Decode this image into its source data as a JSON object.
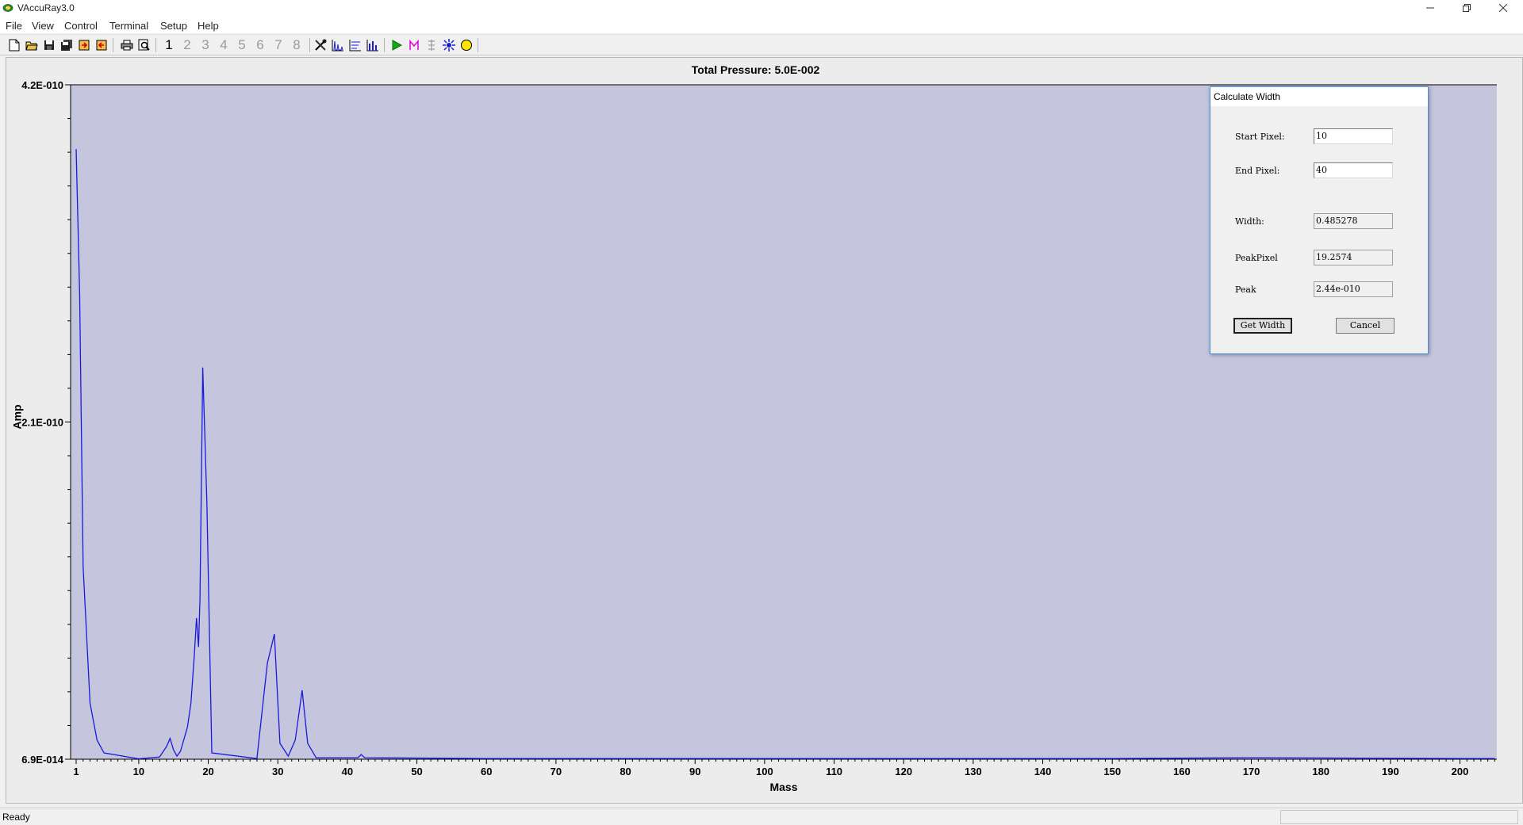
{
  "window": {
    "title": "VAccuRay3.0"
  },
  "menu": [
    "File",
    "View",
    "Control",
    "Terminal",
    "Setup",
    "Help"
  ],
  "toolbar": {
    "channels": [
      "1",
      "2",
      "3",
      "4",
      "5",
      "6",
      "7",
      "8"
    ],
    "active_channel": "1"
  },
  "colors": {
    "plot_bg": "#c5c5de",
    "trace": "#1a1adb",
    "dialog_border": "#4a90d9"
  },
  "chart_data": {
    "type": "line",
    "title": "Total Pressure: 5.0E-002",
    "xlabel": "Mass",
    "ylabel": "Amp",
    "xlim": [
      0.2,
      205.3
    ],
    "ylim": [
      6.9e-14,
      4.2e-10
    ],
    "x_ticks": [
      1,
      10,
      20,
      30,
      40,
      50,
      60,
      70,
      80,
      90,
      100,
      110,
      120,
      130,
      140,
      150,
      160,
      170,
      180,
      190,
      200
    ],
    "y_tick_labels": [
      "4.2E-010",
      "2.1E-010",
      "6.9E-014"
    ],
    "y_tick_values": [
      4.2e-10,
      2.1e-10,
      6.9e-14
    ],
    "grid": false,
    "legend": "none",
    "series": [
      {
        "x": [
          1.0,
          1.5,
          2.0,
          3.0,
          4.0,
          5.0,
          10.0,
          13.0,
          14.0,
          14.5,
          15.0,
          15.5,
          16.0,
          17.0,
          17.5,
          18.0,
          18.3,
          18.6,
          18.8,
          19.2,
          19.8,
          20.5,
          27.0,
          28.5,
          29.5,
          30.3,
          31.5,
          32.5,
          33.5,
          34.3,
          35.5,
          41.5,
          42.0,
          42.5,
          60.0,
          100.0,
          150.0,
          171.0,
          200.0,
          205.0
        ],
        "y": [
          3.8e-10,
          2.9e-10,
          1.2e-10,
          3.5e-11,
          1.2e-11,
          4e-12,
          3e-13,
          1.5e-12,
          8e-12,
          1.3e-11,
          6e-12,
          2e-12,
          5e-12,
          2e-11,
          3.5e-11,
          6.5e-11,
          8.8e-11,
          7e-11,
          1e-10,
          2.44e-10,
          1.6e-10,
          4e-12,
          5e-13,
          6e-11,
          7.8e-11,
          1e-11,
          2e-12,
          1.2e-11,
          4.3e-11,
          1e-11,
          1e-12,
          1e-12,
          3e-12,
          1e-12,
          5e-13,
          5e-13,
          5e-13,
          1e-12,
          5e-13,
          5e-13
        ]
      }
    ]
  },
  "dialog": {
    "title": "Calculate Width",
    "start_pixel_label": "Start Pixel:",
    "start_pixel_value": "10",
    "end_pixel_label": "End Pixel:",
    "end_pixel_value": "40",
    "width_label": "Width:",
    "width_value": "0.485278",
    "peak_pixel_label": "PeakPixel",
    "peak_pixel_value": "19.2574",
    "peak_label": "Peak",
    "peak_value": "2.44e-010",
    "get_width_label": "Get Width",
    "cancel_label": "Cancel"
  },
  "status": {
    "text": "Ready"
  }
}
